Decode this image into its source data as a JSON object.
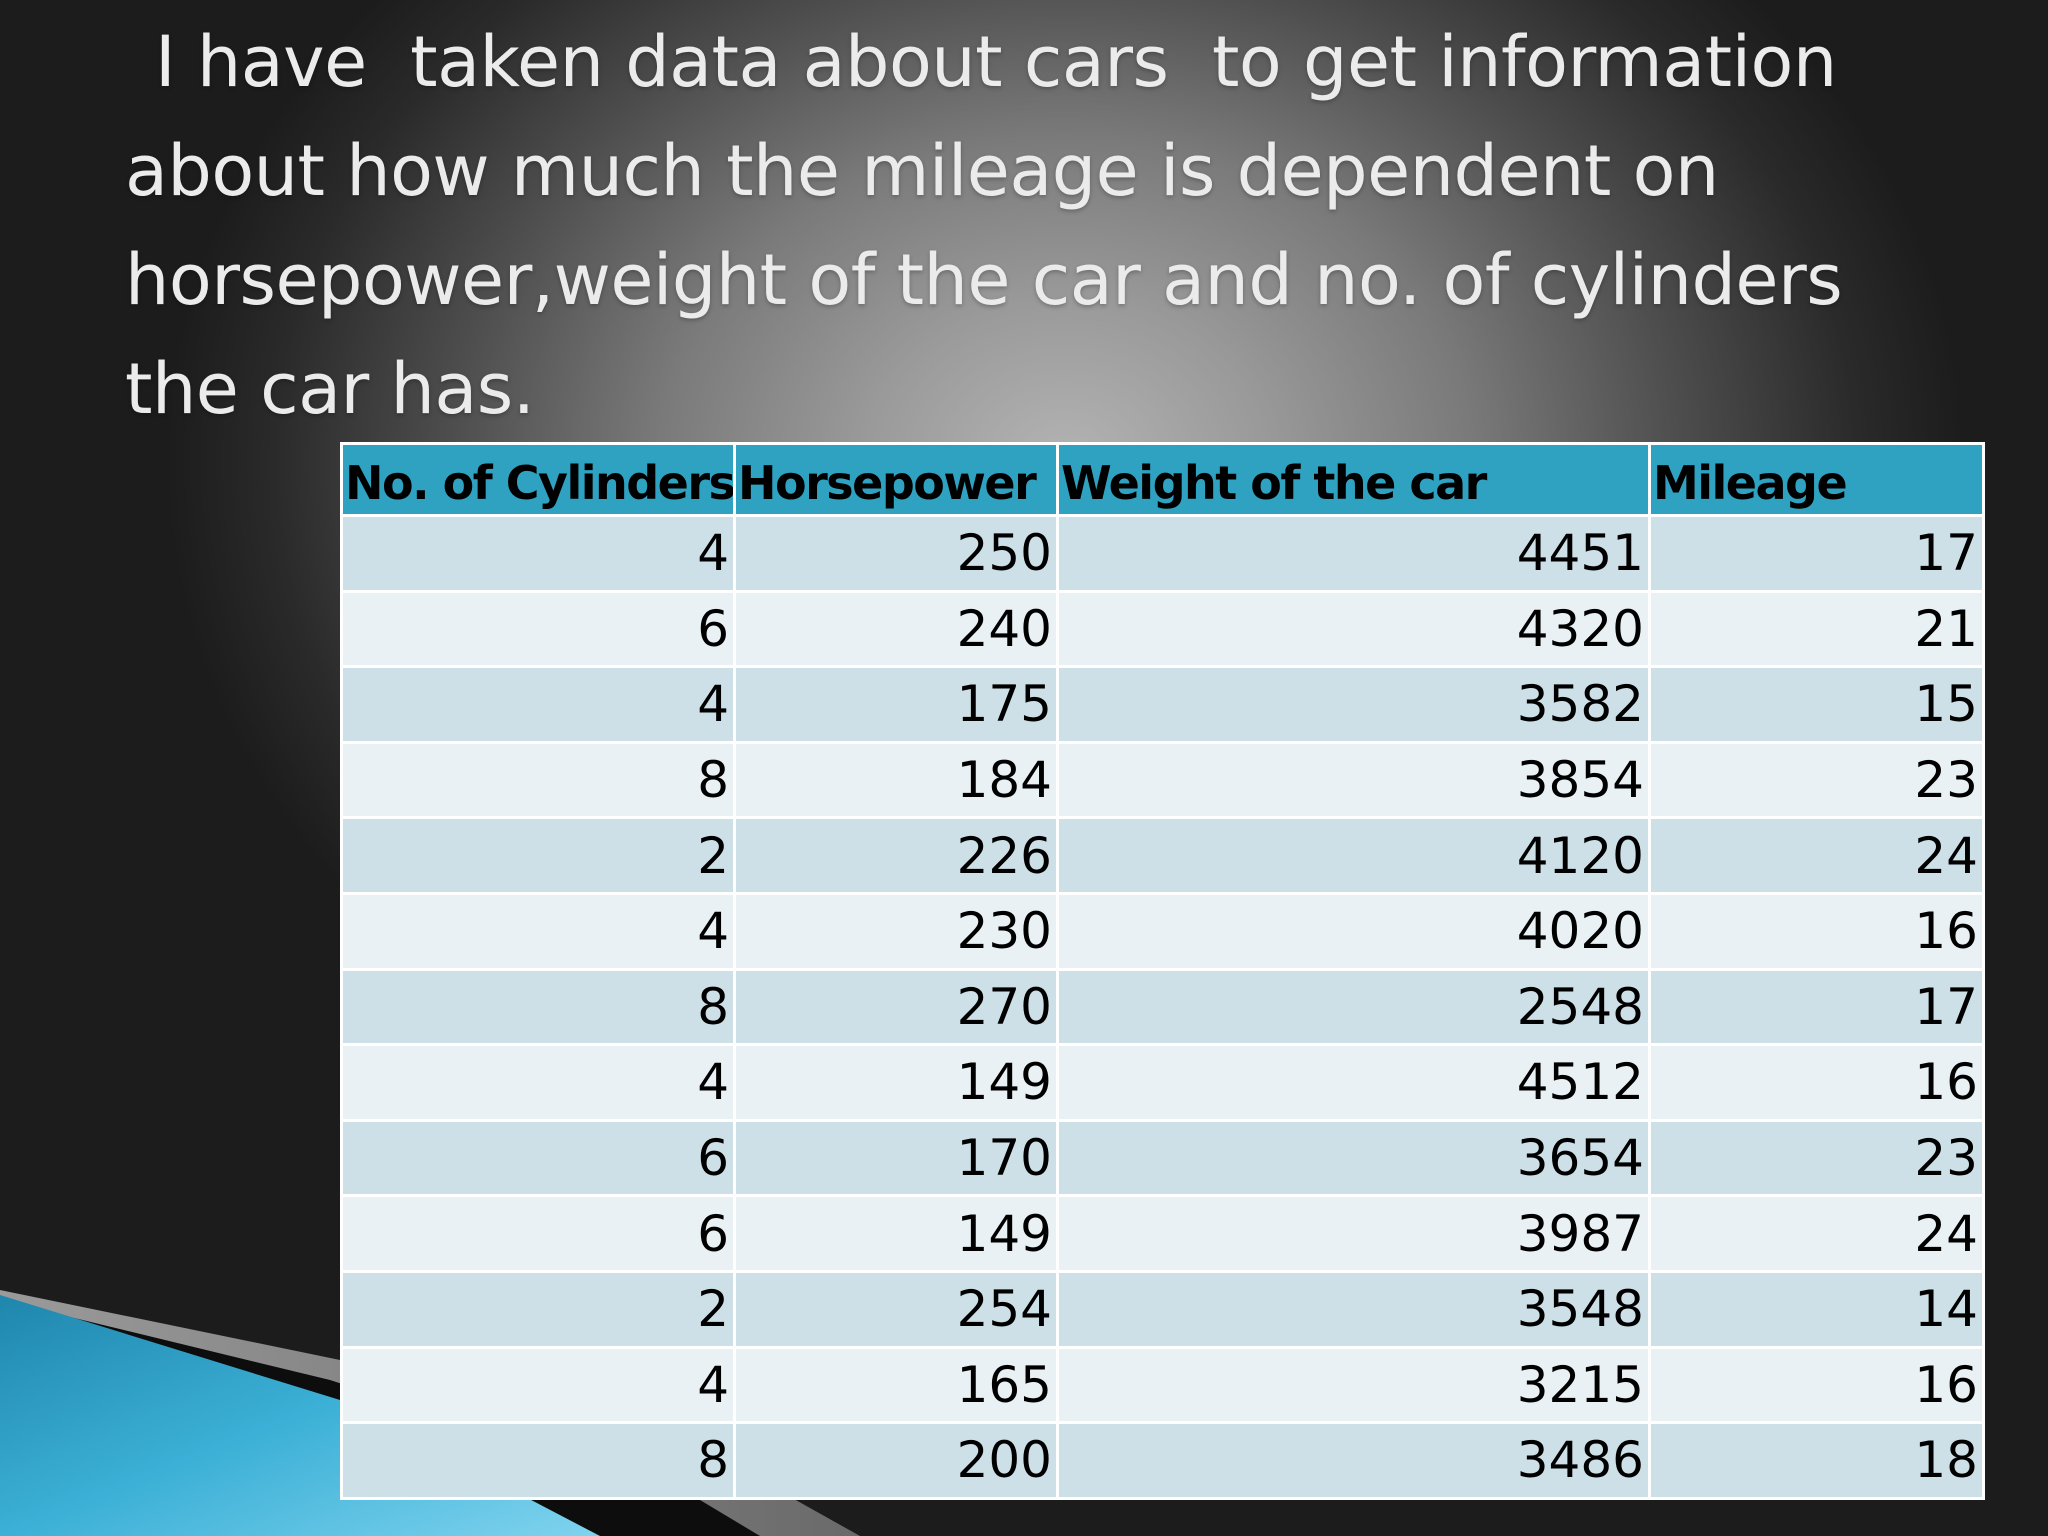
{
  "slide": {
    "heading_lines": [
      "I have  taken data about cars  to get information",
      "about how much the mileage is dependent on",
      "horsepower,weight of the car and no. of cylinders",
      "the car has."
    ]
  },
  "table": {
    "headers": [
      "No. of Cylinders",
      "Horsepower",
      "Weight of the car",
      "Mileage"
    ],
    "rows": [
      [
        "4",
        "250",
        "4451",
        "17"
      ],
      [
        "6",
        "240",
        "4320",
        "21"
      ],
      [
        "4",
        "175",
        "3582",
        "15"
      ],
      [
        "8",
        "184",
        "3854",
        "23"
      ],
      [
        "2",
        "226",
        "4120",
        "24"
      ],
      [
        "4",
        "230",
        "4020",
        "16"
      ],
      [
        "8",
        "270",
        "2548",
        "17"
      ],
      [
        "4",
        "149",
        "4512",
        "16"
      ],
      [
        "6",
        "170",
        "3654",
        "23"
      ],
      [
        "6",
        "149",
        "3987",
        "24"
      ],
      [
        "2",
        "254",
        "3548",
        "14"
      ],
      [
        "4",
        "165",
        "3215",
        "16"
      ],
      [
        "8",
        "200",
        "3486",
        "18"
      ]
    ]
  },
  "colors": {
    "header_fill": "#2fa2c2",
    "row_band_dark": "#cde0e7",
    "row_band_light": "#e9f1f4",
    "accent_blue": "#2a9cc4"
  }
}
